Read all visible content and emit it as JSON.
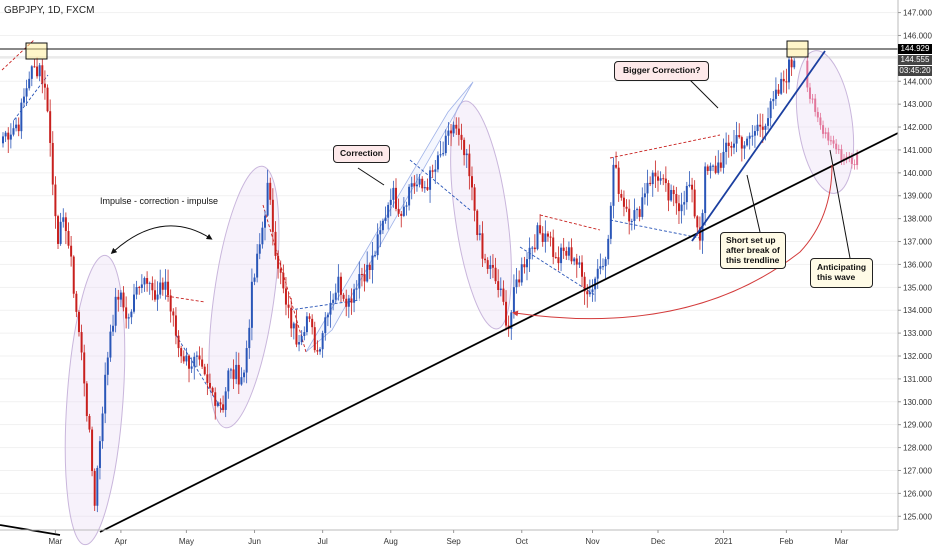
{
  "header": {
    "symbol_label": "GBPJPY, 1D, FXCM"
  },
  "price_labels": {
    "current": "144.929",
    "secondary": "144.555",
    "countdown": "03:45:20"
  },
  "annotations": {
    "impulse": "Impulse - correction - impulse",
    "correction": "Correction",
    "bigger_correction": "Bigger Correction?",
    "short_setup": [
      "Short set up",
      "after break of",
      "this trendline"
    ],
    "anticipating": [
      "Anticipating",
      "this wave"
    ]
  },
  "colors": {
    "up": "#2a56b8",
    "down": "#c8201e",
    "projection": "#e2769a",
    "trendline": "#000000",
    "blue_trendline": "#1b3fa0",
    "arrow": "#d33b3b",
    "ellipse": "#c9b6dc",
    "channel": "#9fb2e8"
  },
  "chart_data": {
    "type": "candlestick",
    "instrument": "GBPJPY",
    "timeframe": "1D",
    "source": "FXCM",
    "ylim": [
      124.4,
      147.2
    ],
    "y_ticks": [
      125,
      126,
      127,
      128,
      129,
      130,
      131,
      132,
      133,
      134,
      135,
      136,
      137,
      138,
      139,
      140,
      141,
      142,
      143,
      144,
      145,
      146,
      147
    ],
    "x_ticks": [
      "Mar",
      "Apr",
      "May",
      "Jun",
      "Jul",
      "Aug",
      "Sep",
      "Oct",
      "Nov",
      "Dec",
      "2021",
      "Feb",
      "Mar"
    ],
    "x_tick_index": [
      20,
      45,
      70,
      96,
      122,
      148,
      172,
      198,
      225,
      250,
      275,
      299,
      320
    ],
    "num_days": 327,
    "anchors": [
      [
        0,
        141.6
      ],
      [
        6,
        142.2
      ],
      [
        10,
        144.3
      ],
      [
        14,
        144.7
      ],
      [
        17,
        143.0
      ],
      [
        19,
        139.5
      ],
      [
        21,
        137.3
      ],
      [
        24,
        137.8
      ],
      [
        27,
        135.0
      ],
      [
        31,
        131.0
      ],
      [
        35,
        125.7
      ],
      [
        38,
        129.8
      ],
      [
        41,
        133.2
      ],
      [
        44,
        134.7
      ],
      [
        48,
        133.6
      ],
      [
        52,
        135.3
      ],
      [
        56,
        135.6
      ],
      [
        58,
        134.3
      ],
      [
        62,
        135.3
      ],
      [
        64,
        134.0
      ],
      [
        67,
        132.4
      ],
      [
        70,
        131.8
      ],
      [
        74,
        131.7
      ],
      [
        78,
        130.6
      ],
      [
        84,
        129.9
      ],
      [
        86,
        131.2
      ],
      [
        92,
        131.2
      ],
      [
        95,
        134.8
      ],
      [
        98,
        136.8
      ],
      [
        101,
        139.3
      ],
      [
        104,
        136.8
      ],
      [
        108,
        134.1
      ],
      [
        112,
        132.8
      ],
      [
        116,
        133.7
      ],
      [
        120,
        132.2
      ],
      [
        124,
        134.2
      ],
      [
        128,
        135.2
      ],
      [
        132,
        134.4
      ],
      [
        136,
        135.6
      ],
      [
        140,
        135.8
      ],
      [
        144,
        137.3
      ],
      [
        148,
        139.2
      ],
      [
        152,
        138.4
      ],
      [
        156,
        139.6
      ],
      [
        160,
        139.3
      ],
      [
        164,
        139.9
      ],
      [
        168,
        140.9
      ],
      [
        172,
        142.1
      ],
      [
        174,
        141.4
      ],
      [
        177,
        140.4
      ],
      [
        180,
        138.4
      ],
      [
        183,
        136.2
      ],
      [
        187,
        135.6
      ],
      [
        190,
        134.6
      ],
      [
        193,
        133.3
      ],
      [
        196,
        135.2
      ],
      [
        200,
        136.5
      ],
      [
        204,
        137.3
      ],
      [
        208,
        137.5
      ],
      [
        211,
        136.1
      ],
      [
        214,
        136.5
      ],
      [
        218,
        136.4
      ],
      [
        221,
        135.4
      ],
      [
        224,
        134.8
      ],
      [
        227,
        135.8
      ],
      [
        231,
        136.9
      ],
      [
        233,
        140.3
      ],
      [
        236,
        139.0
      ],
      [
        239,
        138.3
      ],
      [
        242,
        138.1
      ],
      [
        246,
        139.7
      ],
      [
        250,
        139.9
      ],
      [
        254,
        138.9
      ],
      [
        258,
        138.7
      ],
      [
        262,
        139.4
      ],
      [
        266,
        137.2
      ],
      [
        268,
        139.9
      ],
      [
        272,
        140.2
      ],
      [
        276,
        140.9
      ],
      [
        280,
        141.6
      ],
      [
        284,
        141.2
      ],
      [
        288,
        142.0
      ],
      [
        292,
        142.5
      ],
      [
        296,
        143.5
      ],
      [
        300,
        144.6
      ],
      [
        302,
        144.9
      ]
    ],
    "projection": [
      [
        307,
        143.6
      ],
      [
        310,
        142.8
      ],
      [
        313,
        141.9
      ],
      [
        316,
        141.3
      ],
      [
        320,
        140.7
      ],
      [
        324,
        140.4
      ],
      [
        327,
        140.8
      ]
    ],
    "last_price": 144.929
  }
}
